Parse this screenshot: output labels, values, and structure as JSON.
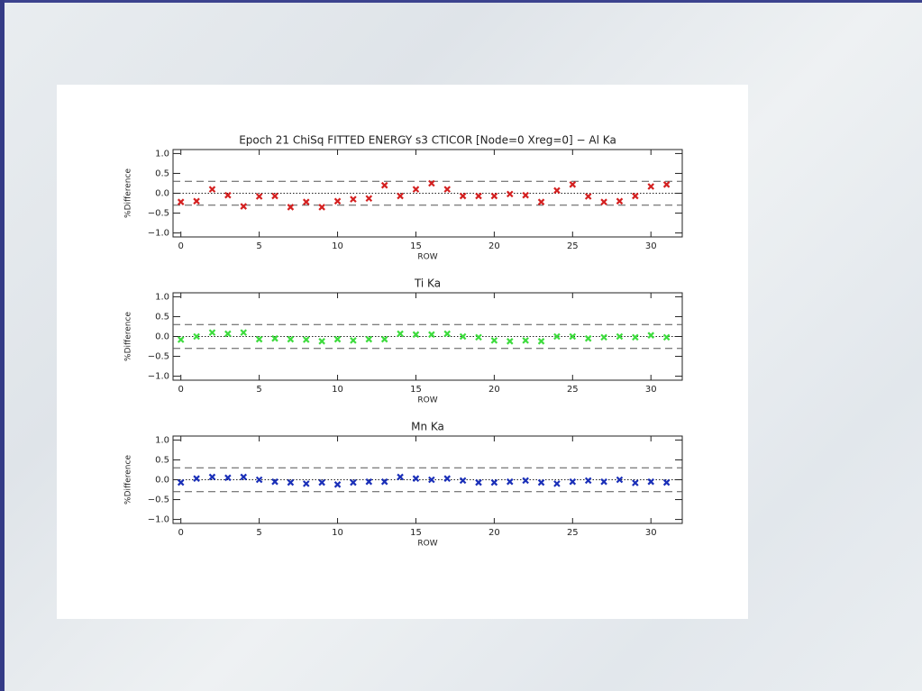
{
  "chart_data": [
    {
      "type": "scatter",
      "title": "Epoch 21 ChiSq FITTED ENERGY s3 CTICOR [Node=0 Xreg=0] − Al Ka",
      "xlabel": "ROW",
      "ylabel": "%Difference",
      "color": "#d42020",
      "marker": "x",
      "x": [
        0,
        1,
        2,
        3,
        4,
        5,
        6,
        7,
        8,
        9,
        10,
        11,
        12,
        13,
        14,
        15,
        16,
        17,
        18,
        19,
        20,
        21,
        22,
        23,
        24,
        25,
        26,
        27,
        28,
        29,
        30,
        31
      ],
      "values": [
        -0.22,
        -0.2,
        0.1,
        -0.05,
        -0.33,
        -0.08,
        -0.07,
        -0.35,
        -0.22,
        -0.35,
        -0.2,
        -0.15,
        -0.13,
        0.2,
        -0.07,
        0.1,
        0.25,
        0.1,
        -0.07,
        -0.07,
        -0.07,
        -0.02,
        -0.05,
        -0.22,
        0.07,
        0.22,
        -0.08,
        -0.22,
        -0.2,
        -0.07,
        0.17,
        0.22
      ],
      "xlim": [
        -0.5,
        32
      ],
      "xticks": [
        0,
        5,
        10,
        15,
        20,
        25,
        30
      ],
      "ylim": [
        -1.1,
        1.1
      ],
      "yticks": [
        {
          "value": -1,
          "label": "−1.0"
        },
        {
          "value": -0.5,
          "label": "−0.5"
        },
        {
          "value": 0,
          "label": "0.0"
        },
        {
          "value": 0.5,
          "label": "0.5"
        },
        {
          "value": 1,
          "label": "1.0"
        }
      ],
      "dashed_lines": [
        0.3,
        -0.3
      ],
      "dotted_lines": [
        0
      ]
    },
    {
      "type": "scatter",
      "title": "Ti Ka",
      "xlabel": "ROW",
      "ylabel": "%Difference",
      "color": "#3ddc3d",
      "marker": "x",
      "x": [
        0,
        1,
        2,
        3,
        4,
        5,
        6,
        7,
        8,
        9,
        10,
        11,
        12,
        13,
        14,
        15,
        16,
        17,
        18,
        19,
        20,
        21,
        22,
        23,
        24,
        25,
        26,
        27,
        28,
        29,
        30,
        31
      ],
      "values": [
        -0.08,
        0,
        0.1,
        0.07,
        0.1,
        -0.07,
        -0.05,
        -0.07,
        -0.08,
        -0.12,
        -0.07,
        -0.1,
        -0.07,
        -0.07,
        0.07,
        0.05,
        0.05,
        0.07,
        0,
        -0.02,
        -0.1,
        -0.12,
        -0.1,
        -0.12,
        0,
        0,
        -0.05,
        -0.02,
        0,
        -0.02,
        0.03,
        -0.02
      ],
      "xlim": [
        -0.5,
        32
      ],
      "xticks": [
        0,
        5,
        10,
        15,
        20,
        25,
        30
      ],
      "ylim": [
        -1.1,
        1.1
      ],
      "yticks": [
        {
          "value": -1,
          "label": "−1.0"
        },
        {
          "value": -0.5,
          "label": "−0.5"
        },
        {
          "value": 0,
          "label": "0.0"
        },
        {
          "value": 0.5,
          "label": "0.5"
        },
        {
          "value": 1,
          "label": "1.0"
        }
      ],
      "dashed_lines": [
        0.3,
        -0.3
      ],
      "dotted_lines": [
        0
      ]
    },
    {
      "type": "scatter",
      "title": "Mn Ka",
      "xlabel": "ROW",
      "ylabel": "%Difference",
      "color": "#1a2fb8",
      "marker": "x",
      "x": [
        0,
        1,
        2,
        3,
        4,
        5,
        6,
        7,
        8,
        9,
        10,
        11,
        12,
        13,
        14,
        15,
        16,
        17,
        18,
        19,
        20,
        21,
        22,
        23,
        24,
        25,
        26,
        27,
        28,
        29,
        30,
        31
      ],
      "values": [
        -0.07,
        0.03,
        0.07,
        0.05,
        0.07,
        0,
        -0.05,
        -0.07,
        -0.1,
        -0.07,
        -0.12,
        -0.07,
        -0.05,
        -0.05,
        0.07,
        0.03,
        0,
        0.03,
        -0.02,
        -0.07,
        -0.07,
        -0.05,
        -0.02,
        -0.07,
        -0.1,
        -0.05,
        -0.02,
        -0.05,
        0,
        -0.08,
        -0.05,
        -0.07
      ],
      "xlim": [
        -0.5,
        32
      ],
      "xticks": [
        0,
        5,
        10,
        15,
        20,
        25,
        30
      ],
      "ylim": [
        -1.1,
        1.1
      ],
      "yticks": [
        {
          "value": -1,
          "label": "−1.0"
        },
        {
          "value": -0.5,
          "label": "−0.5"
        },
        {
          "value": 0,
          "label": "0.0"
        },
        {
          "value": 0.5,
          "label": "0.5"
        },
        {
          "value": 1,
          "label": "1.0"
        }
      ],
      "dashed_lines": [
        0.3,
        -0.3
      ],
      "dotted_lines": [
        0
      ]
    }
  ]
}
